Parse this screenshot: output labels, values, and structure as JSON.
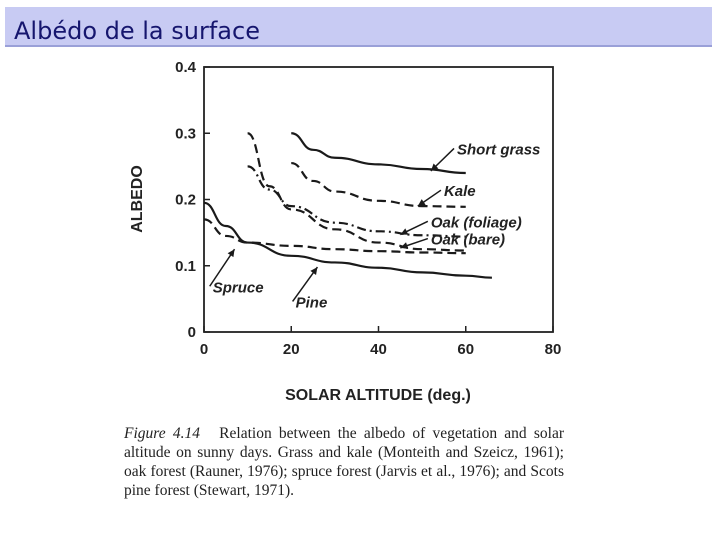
{
  "slide": {
    "title": "Albédo de la surface",
    "accent_color": "#c8cbf3",
    "title_color": "#16166e"
  },
  "caption": {
    "figure_label": "Figure 4.14",
    "text": "Relation between the albedo of vegetation and solar altitude on sunny days. Grass and kale (Monteith and Szeicz, 1961); oak forest (Rauner, 1976); spruce forest (Jarvis et al., 1976); and Scots pine forest (Stewart, 1971)."
  },
  "chart_data": {
    "type": "line",
    "xlabel": "SOLAR ALTITUDE (deg.)",
    "ylabel": "ALBEDO",
    "xlim": [
      0,
      80
    ],
    "ylim": [
      0,
      0.4
    ],
    "xticks": [
      "0",
      "20",
      "40",
      "60",
      "80"
    ],
    "yticks": [
      "0",
      "0.1",
      "0.2",
      "0.3",
      "0.4"
    ],
    "grid": false,
    "series": [
      {
        "name": "Short grass",
        "style": "solid",
        "x": [
          20,
          25,
          30,
          40,
          50,
          60
        ],
        "y": [
          0.3,
          0.275,
          0.263,
          0.253,
          0.246,
          0.24
        ],
        "label_at": [
          58,
          0.268
        ],
        "arrow_to": [
          52,
          0.243
        ]
      },
      {
        "name": "Kale",
        "style": "dashed",
        "x": [
          20,
          25,
          30,
          40,
          50,
          60
        ],
        "y": [
          0.255,
          0.228,
          0.212,
          0.198,
          0.19,
          0.189
        ],
        "label_at": [
          55,
          0.205
        ],
        "arrow_to": [
          49,
          0.19
        ]
      },
      {
        "name": "Oak (foliage)",
        "style": "dashdot",
        "x": [
          10,
          15,
          20,
          30,
          40,
          50,
          60
        ],
        "y": [
          0.25,
          0.215,
          0.19,
          0.165,
          0.152,
          0.146,
          0.144
        ],
        "label_at": [
          52,
          0.158
        ],
        "arrow_to": [
          45,
          0.147
        ]
      },
      {
        "name": "Oak (bare)",
        "style": "dashed",
        "x": [
          10,
          15,
          20,
          30,
          40,
          50,
          60
        ],
        "y": [
          0.3,
          0.22,
          0.185,
          0.155,
          0.135,
          0.125,
          0.123
        ],
        "label_at": [
          52,
          0.132
        ],
        "arrow_to": [
          45,
          0.127
        ]
      },
      {
        "name": "Spruce",
        "style": "dashed",
        "x": [
          0,
          5,
          10,
          20,
          30,
          40,
          50,
          60
        ],
        "y": [
          0.17,
          0.145,
          0.135,
          0.13,
          0.125,
          0.122,
          0.12,
          0.119
        ],
        "label_at": [
          2,
          0.06
        ],
        "arrow_to": [
          7,
          0.125
        ]
      },
      {
        "name": "Pine",
        "style": "solid",
        "x": [
          0,
          5,
          10,
          20,
          30,
          40,
          50,
          60,
          66
        ],
        "y": [
          0.195,
          0.16,
          0.135,
          0.115,
          0.105,
          0.097,
          0.09,
          0.085,
          0.082
        ],
        "label_at": [
          21,
          0.037
        ],
        "arrow_to": [
          26,
          0.098
        ]
      }
    ]
  }
}
